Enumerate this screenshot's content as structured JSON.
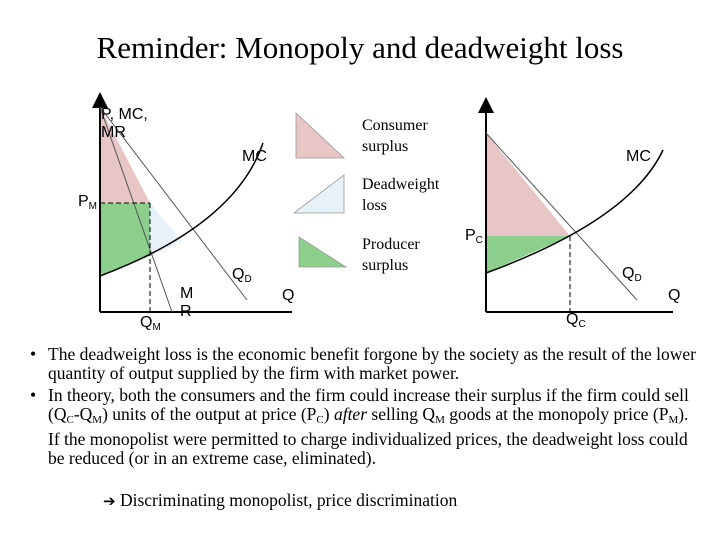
{
  "title": "Reminder: Monopoly and deadweight loss",
  "left_graph": {
    "y_axis_label": "P, MC,\nMR",
    "mc_label": "MC",
    "pm_label": "P",
    "pm_sub": "M",
    "qd_label": "Q",
    "qd_sub": "D",
    "mr_label": "M\nR",
    "qm_label": "Q",
    "qm_sub": "M",
    "q_axis_label": "Q"
  },
  "legend": {
    "consumer_surplus": "Consumer\nsurplus",
    "deadweight_loss": "Deadweight\nloss",
    "producer_surplus": "Producer\nsurplus"
  },
  "right_graph": {
    "mc_label": "MC",
    "pc_label": "P",
    "pc_sub": "C",
    "qd_label": "Q",
    "qd_sub": "D",
    "qc_label": "Q",
    "qc_sub": "C",
    "q_axis_label": "Q"
  },
  "colors": {
    "consumer_surplus": "#e8c6c6",
    "deadweight_loss": "#e6f2f8",
    "producer_surplus": "#8ccf8c"
  },
  "bullets": {
    "b1": "The deadweight loss is the economic benefit forgone by the society as the result of the lower quantity of output supplied by the firm with market power.",
    "b2_part1": "In theory, both the consumers and the firm could increase their surplus if the firm could sell (Q",
    "b2_qc_sub": "C",
    "b2_part2": "-Q",
    "b2_qm_sub": "M",
    "b2_part3": ") units of the output at price (P",
    "b2_pc_sub": "C",
    "b2_part4": ") ",
    "b2_after": "after",
    "b2_part5": " selling Q",
    "b2_qm_sub2": "M",
    "b2_part6": " goods at the monopoly price (P",
    "b2_pm_sub": "M",
    "b2_part7": "). If the monopolist were permitted to charge individualized prices, the deadweight loss could be reduced (or in an extreme case, eliminated)."
  },
  "conclusion": {
    "arrow_icon": "right-arrow-icon",
    "text": " Discriminating monopolist, price discrimination"
  }
}
